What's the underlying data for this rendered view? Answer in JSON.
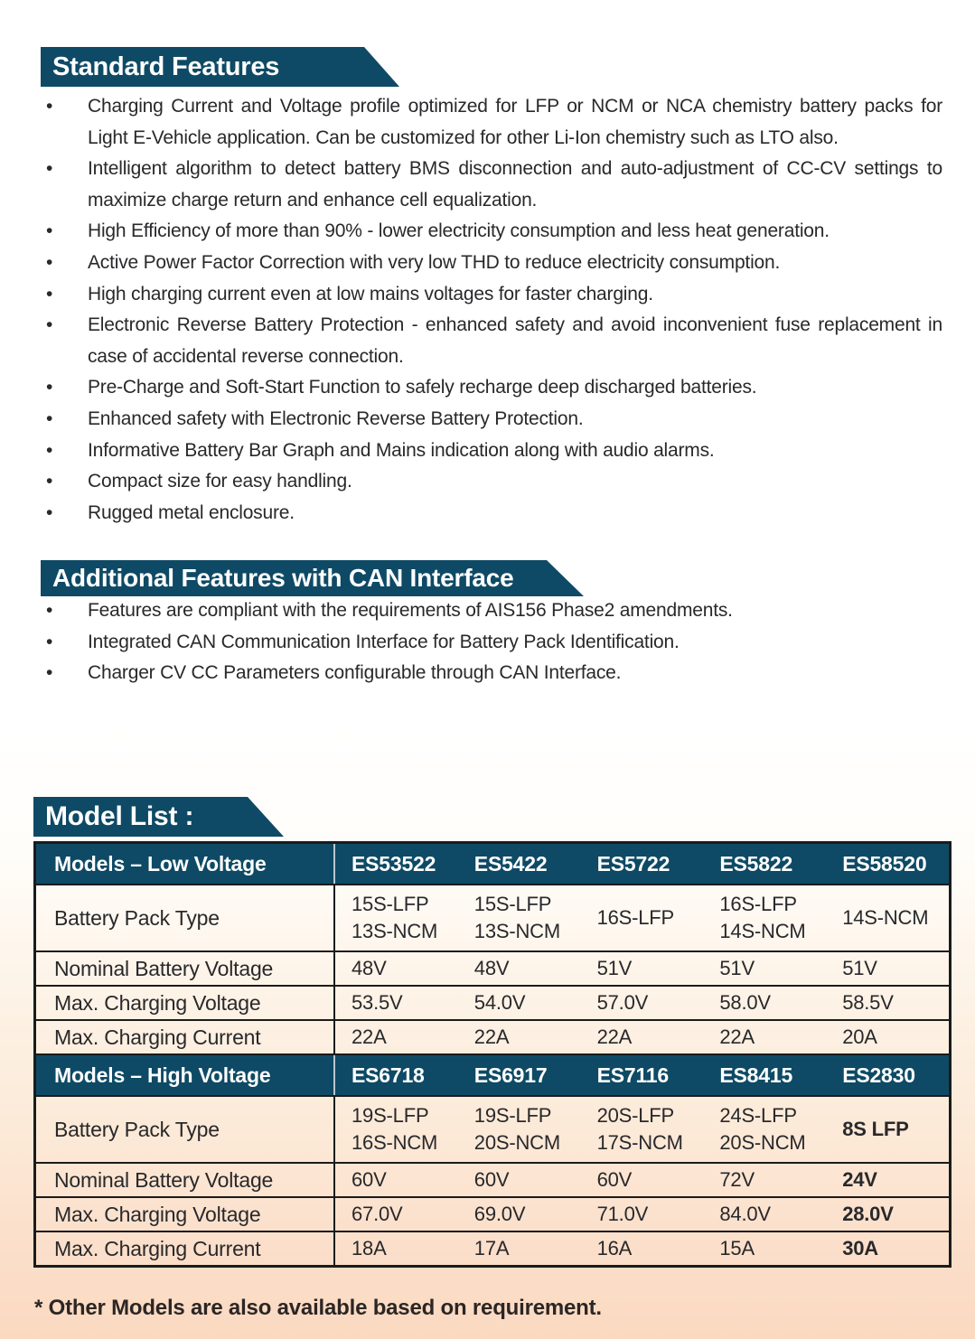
{
  "colors": {
    "banner_teal": "#0e4a65",
    "page_bottom_peach": "#fbd9c1",
    "body_text": "#29282b"
  },
  "sections": {
    "standard_features": {
      "title": "Standard Features",
      "bullets": [
        "Charging Current and Voltage profile optimized for LFP or NCM or NCA chemistry battery packs for Light E-Vehicle application. Can be customized for other Li-Ion chemistry such as LTO also.",
        "Intelligent algorithm to detect battery BMS disconnection and auto-adjustment of CC-CV settings to maximize charge return and enhance cell equalization.",
        "High Efficiency of more than 90% - lower electricity consumption and less heat generation.",
        "Active Power Factor Correction with very low THD to reduce electricity consumption.",
        "High charging current even at low mains voltages for faster charging.",
        "Electronic Reverse Battery Protection - enhanced safety and avoid inconvenient fuse replacement in case of accidental reverse connection.",
        "Pre-Charge and Soft-Start Function to safely recharge deep discharged batteries.",
        "Enhanced safety with Electronic Reverse Battery Protection.",
        "Informative Battery Bar Graph and Mains indication along with audio alarms.",
        "Compact size for easy handling.",
        "Rugged metal enclosure."
      ]
    },
    "can_features": {
      "title": "Additional Features with CAN Interface",
      "bullets": [
        "Features are compliant with the requirements of AIS156 Phase2 amendments.",
        "Integrated CAN Communication Interface for Battery Pack Identification.",
        "Charger CV CC Parameters configurable through CAN Interface."
      ]
    },
    "model_list": {
      "title": "Model List :"
    }
  },
  "table": {
    "sections": [
      {
        "header": {
          "label": "Models – Low Voltage",
          "models": [
            "ES53522",
            "ES5422",
            "ES5722",
            "ES5822",
            "ES58520"
          ]
        },
        "emphasize_last_column": false,
        "rows": [
          {
            "label": "Battery Pack Type",
            "tall": true,
            "values": [
              "15S-LFP\n13S-NCM",
              "15S-LFP\n13S-NCM",
              "16S-LFP",
              "16S-LFP\n14S-NCM",
              "14S-NCM"
            ]
          },
          {
            "label": "Nominal Battery Voltage",
            "values": [
              "48V",
              "48V",
              "51V",
              "51V",
              "51V"
            ]
          },
          {
            "label": "Max. Charging Voltage",
            "values": [
              "53.5V",
              "54.0V",
              "57.0V",
              "58.0V",
              "58.5V"
            ]
          },
          {
            "label": "Max. Charging Current",
            "values": [
              "22A",
              "22A",
              "22A",
              "22A",
              "20A"
            ]
          }
        ]
      },
      {
        "header": {
          "label": "Models – High Voltage",
          "models": [
            "ES6718",
            "ES6917",
            "ES7116",
            "ES8415",
            "ES2830"
          ]
        },
        "emphasize_last_column": true,
        "rows": [
          {
            "label": "Battery Pack Type",
            "tall": true,
            "values": [
              "19S-LFP\n16S-NCM",
              "19S-LFP\n20S-NCM",
              "20S-LFP\n17S-NCM",
              "24S-LFP\n20S-NCM",
              "8S LFP"
            ]
          },
          {
            "label": "Nominal Battery Voltage",
            "values": [
              "60V",
              "60V",
              "60V",
              "72V",
              "24V"
            ]
          },
          {
            "label": "Max. Charging Voltage",
            "values": [
              "67.0V",
              "69.0V",
              "71.0V",
              "84.0V",
              "28.0V"
            ]
          },
          {
            "label": "Max. Charging Current",
            "values": [
              "18A",
              "17A",
              "16A",
              "15A",
              "30A"
            ]
          }
        ]
      }
    ]
  },
  "footnote": "* Other Models are also available based on requirement."
}
